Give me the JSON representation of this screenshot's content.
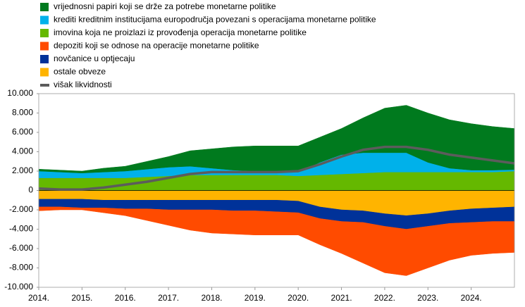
{
  "chart_data": {
    "type": "area",
    "x": [
      2014,
      2014.5,
      2015,
      2015.5,
      2016,
      2016.5,
      2017,
      2017.5,
      2018,
      2018.5,
      2019,
      2019.5,
      2020,
      2020.5,
      2021,
      2021.5,
      2022,
      2022.5,
      2023,
      2023.5,
      2024,
      2024.5,
      2025
    ],
    "xlim": [
      2014,
      2025
    ],
    "xticks": [
      {
        "value": 2014,
        "label": "2014."
      },
      {
        "value": 2015,
        "label": "2015."
      },
      {
        "value": 2016,
        "label": "2016."
      },
      {
        "value": 2017,
        "label": "2017."
      },
      {
        "value": 2018,
        "label": "2018."
      },
      {
        "value": 2019,
        "label": "2019."
      },
      {
        "value": 2020,
        "label": "2020."
      },
      {
        "value": 2021,
        "label": "2021."
      },
      {
        "value": 2022,
        "label": "2022."
      },
      {
        "value": 2023,
        "label": "2023."
      },
      {
        "value": 2024,
        "label": "2024."
      }
    ],
    "ylim": [
      -10000,
      10000
    ],
    "yticks": [
      {
        "value": -10000,
        "label": "-10.000"
      },
      {
        "value": -8000,
        "label": "-8.000"
      },
      {
        "value": -6000,
        "label": "-6.000"
      },
      {
        "value": -4000,
        "label": "-4.000"
      },
      {
        "value": -2000,
        "label": "-2.000"
      },
      0,
      {
        "value": 2000,
        "label": "2.000"
      },
      {
        "value": 4000,
        "label": "4.000"
      },
      {
        "value": 6000,
        "label": "6.000"
      },
      {
        "value": 8000,
        "label": "8.000"
      },
      {
        "value": 10000,
        "label": "10.000"
      }
    ],
    "series": [
      {
        "name": "vrijednosni papiri koji se drže za potrebe monetarne politike",
        "color": "#007a1e",
        "values": [
          200,
          200,
          200,
          400,
          500,
          800,
          1100,
          1600,
          2000,
          2400,
          2600,
          2600,
          2700,
          2600,
          2700,
          3600,
          4600,
          4900,
          5100,
          5000,
          4800,
          4500,
          4250
        ]
      },
      {
        "name": "krediti kreditnim institucijama europodručja povezani s operacijama monetarne politike",
        "color": "#00b1ea",
        "values": [
          700,
          600,
          500,
          600,
          700,
          800,
          900,
          900,
          700,
          500,
          400,
          400,
          400,
          1300,
          2000,
          2100,
          2000,
          2000,
          1000,
          400,
          200,
          200,
          150
        ]
      },
      {
        "name": "imovina koja ne proizlazi iz provođenja operacija monetarne politike",
        "color": "#65b800",
        "values": [
          1300,
          1300,
          1300,
          1300,
          1300,
          1400,
          1500,
          1600,
          1600,
          1600,
          1600,
          1600,
          1500,
          1600,
          1700,
          1800,
          1900,
          1900,
          1900,
          1900,
          1900,
          1900,
          2000
        ]
      },
      {
        "name": "depoziti koji se odnose na operacije monetarne politike",
        "color": "#ff4b00",
        "values": [
          -400,
          -300,
          -200,
          -500,
          -700,
          -1200,
          -1600,
          -2100,
          -2400,
          -2400,
          -2500,
          -2400,
          -2300,
          -2700,
          -3300,
          -4200,
          -4800,
          -4800,
          -4300,
          -3800,
          -3400,
          -3300,
          -3200
        ]
      },
      {
        "name": "novčanice u optjecaju",
        "color": "#003299",
        "values": [
          -800,
          -800,
          -900,
          -800,
          -900,
          -900,
          -1000,
          -1000,
          -1000,
          -1100,
          -1100,
          -1200,
          -1200,
          -1200,
          -1200,
          -1200,
          -1300,
          -1400,
          -1300,
          -1300,
          -1400,
          -1400,
          -1500
        ]
      },
      {
        "name": "ostale obveze",
        "color": "#ffb400",
        "values": [
          -900,
          -900,
          -900,
          -1000,
          -1000,
          -1000,
          -1000,
          -1000,
          -1000,
          -1000,
          -1000,
          -1000,
          -1100,
          -1700,
          -2000,
          -2100,
          -2400,
          -2600,
          -2400,
          -2100,
          -1900,
          -1800,
          -1700
        ]
      },
      {
        "name": "višak likvidnosti",
        "color": "#5c5c5c",
        "type": "line",
        "values": [
          200,
          100,
          100,
          300,
          600,
          900,
          1300,
          1700,
          1900,
          1900,
          1900,
          1900,
          2000,
          2700,
          3500,
          4200,
          4500,
          4500,
          4200,
          3700,
          3400,
          3100,
          2800
        ]
      }
    ]
  }
}
